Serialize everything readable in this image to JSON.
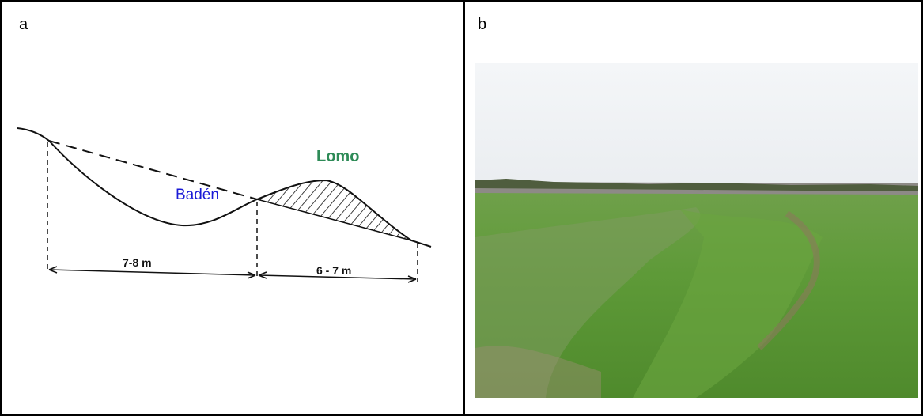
{
  "panel_a": {
    "label": "a",
    "hollow_label": "Badén",
    "ridge_label": "Lomo",
    "span_left": "7-8 m",
    "span_right": "6 - 7 m"
  },
  "panel_b": {
    "label": "b"
  }
}
